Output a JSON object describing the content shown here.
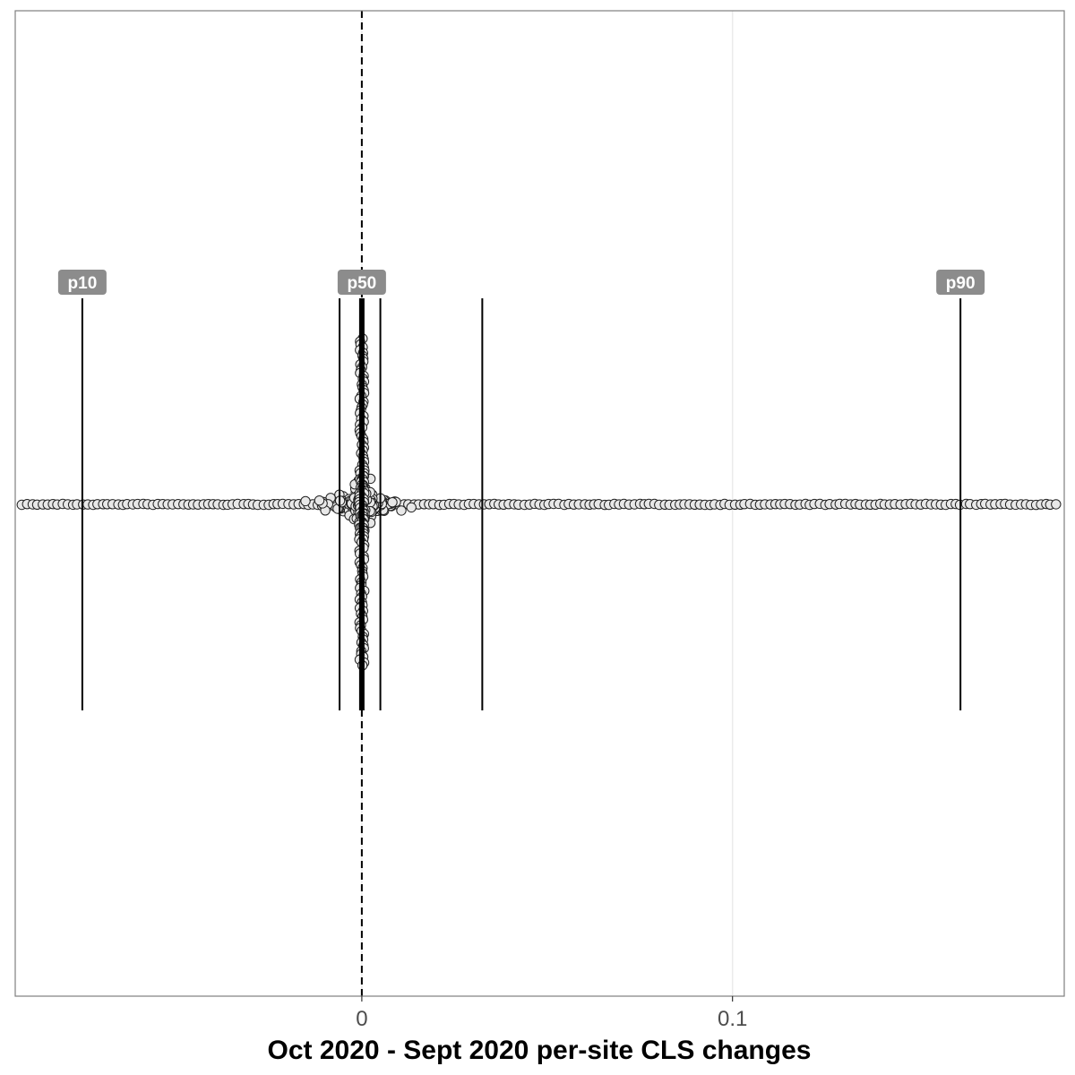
{
  "chart_data": {
    "type": "scatter",
    "title": "",
    "xlabel": "Oct 2020 - Sept 2020 per-site CLS changes",
    "ylabel": "",
    "xlim": [
      -0.0935,
      0.1895
    ],
    "x_ticks": [
      {
        "value": 0,
        "label": "0"
      },
      {
        "value": 0.1,
        "label": "0.1"
      }
    ],
    "grid": true,
    "zero_reference_line": {
      "x": 0,
      "style": "dashed"
    },
    "percentile_lines": [
      {
        "name": "p10",
        "x": -0.0754,
        "label": "p10"
      },
      {
        "name": "p25",
        "x": -0.006,
        "label": ""
      },
      {
        "name": "p50",
        "x": 0.0,
        "label": "p50"
      },
      {
        "name": "p75",
        "x": 0.005,
        "label": ""
      },
      {
        "name": "p80",
        "x": 0.0325,
        "label": ""
      },
      {
        "name": "p90",
        "x": 0.1615,
        "label": "p90"
      }
    ],
    "colors": {
      "point_fill": "#e8e8e8",
      "point_stroke": "#222222",
      "label_bg": "#8c8c8c",
      "grid": "#ebebeb",
      "panel_border": "#7f7f7f"
    }
  }
}
